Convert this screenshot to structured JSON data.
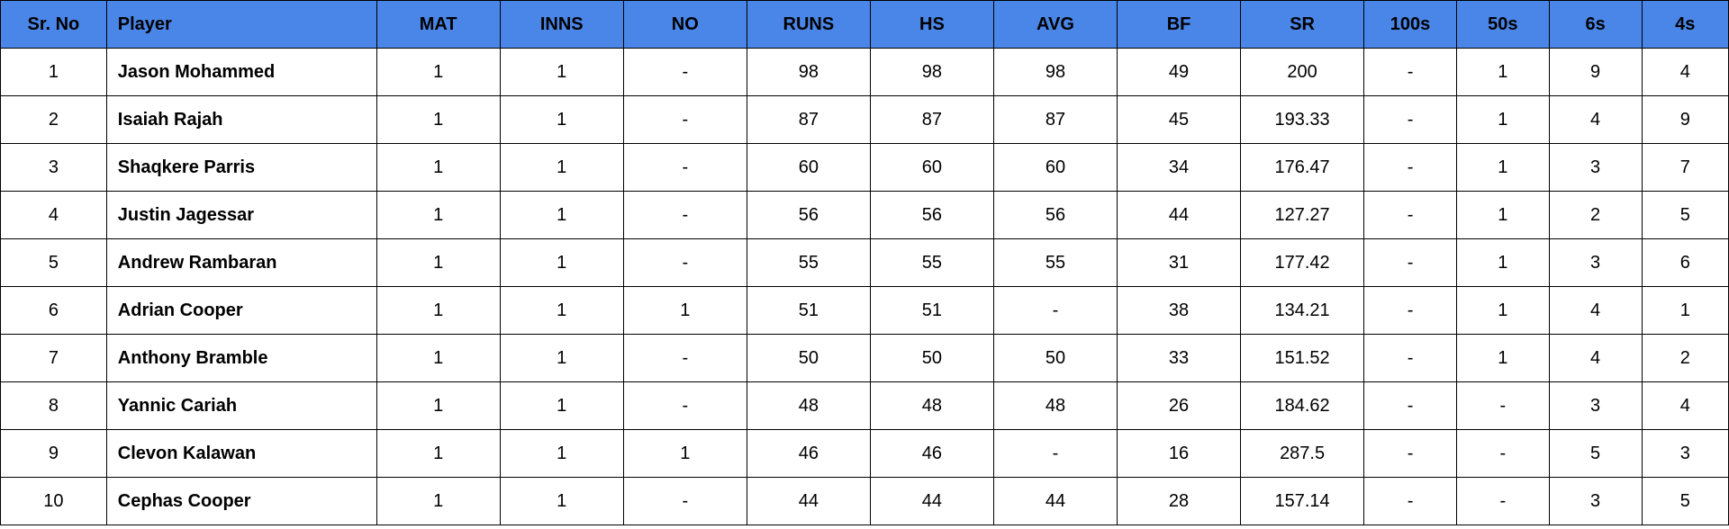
{
  "table": {
    "header_bg": "#4a86e8",
    "border_color": "#000000",
    "columns": [
      {
        "key": "sr",
        "label": "Sr. No",
        "class": "c-sr"
      },
      {
        "key": "player",
        "label": "Player",
        "class": "c-player player-col"
      },
      {
        "key": "mat",
        "label": "MAT",
        "class": "c-mat"
      },
      {
        "key": "inns",
        "label": "INNS",
        "class": "c-inns"
      },
      {
        "key": "no",
        "label": "NO",
        "class": "c-no"
      },
      {
        "key": "runs",
        "label": "RUNS",
        "class": "c-runs"
      },
      {
        "key": "hs",
        "label": "HS",
        "class": "c-hs"
      },
      {
        "key": "avg",
        "label": "AVG",
        "class": "c-avg"
      },
      {
        "key": "bf",
        "label": "BF",
        "class": "c-bf"
      },
      {
        "key": "srate",
        "label": "SR",
        "class": "c-sr2"
      },
      {
        "key": "h100",
        "label": "100s",
        "class": "c-100s"
      },
      {
        "key": "h50",
        "label": "50s",
        "class": "c-50s"
      },
      {
        "key": "s6",
        "label": "6s",
        "class": "c-6s"
      },
      {
        "key": "s4",
        "label": "4s",
        "class": "c-4s"
      }
    ],
    "rows": [
      {
        "sr": "1",
        "player": "Jason Mohammed",
        "mat": "1",
        "inns": "1",
        "no": "-",
        "runs": "98",
        "hs": "98",
        "avg": "98",
        "bf": "49",
        "srate": "200",
        "h100": "-",
        "h50": "1",
        "s6": "9",
        "s4": "4"
      },
      {
        "sr": "2",
        "player": "Isaiah Rajah",
        "mat": "1",
        "inns": "1",
        "no": "-",
        "runs": "87",
        "hs": "87",
        "avg": "87",
        "bf": "45",
        "srate": "193.33",
        "h100": "-",
        "h50": "1",
        "s6": "4",
        "s4": "9"
      },
      {
        "sr": "3",
        "player": "Shaqkere Parris",
        "mat": "1",
        "inns": "1",
        "no": "-",
        "runs": "60",
        "hs": "60",
        "avg": "60",
        "bf": "34",
        "srate": "176.47",
        "h100": "-",
        "h50": "1",
        "s6": "3",
        "s4": "7"
      },
      {
        "sr": "4",
        "player": "Justin Jagessar",
        "mat": "1",
        "inns": "1",
        "no": "-",
        "runs": "56",
        "hs": "56",
        "avg": "56",
        "bf": "44",
        "srate": "127.27",
        "h100": "-",
        "h50": "1",
        "s6": "2",
        "s4": "5"
      },
      {
        "sr": "5",
        "player": "Andrew Rambaran",
        "mat": "1",
        "inns": "1",
        "no": "-",
        "runs": "55",
        "hs": "55",
        "avg": "55",
        "bf": "31",
        "srate": "177.42",
        "h100": "-",
        "h50": "1",
        "s6": "3",
        "s4": "6"
      },
      {
        "sr": "6",
        "player": "Adrian Cooper",
        "mat": "1",
        "inns": "1",
        "no": "1",
        "runs": "51",
        "hs": "51",
        "avg": "-",
        "bf": "38",
        "srate": "134.21",
        "h100": "-",
        "h50": "1",
        "s6": "4",
        "s4": "1"
      },
      {
        "sr": "7",
        "player": "Anthony Bramble",
        "mat": "1",
        "inns": "1",
        "no": "-",
        "runs": "50",
        "hs": "50",
        "avg": "50",
        "bf": "33",
        "srate": "151.52",
        "h100": "-",
        "h50": "1",
        "s6": "4",
        "s4": "2"
      },
      {
        "sr": "8",
        "player": "Yannic Cariah",
        "mat": "1",
        "inns": "1",
        "no": "-",
        "runs": "48",
        "hs": "48",
        "avg": "48",
        "bf": "26",
        "srate": "184.62",
        "h100": "-",
        "h50": "-",
        "s6": "3",
        "s4": "4"
      },
      {
        "sr": "9",
        "player": "Clevon Kalawan",
        "mat": "1",
        "inns": "1",
        "no": "1",
        "runs": "46",
        "hs": "46",
        "avg": "-",
        "bf": "16",
        "srate": "287.5",
        "h100": "-",
        "h50": "-",
        "s6": "5",
        "s4": "3"
      },
      {
        "sr": "10",
        "player": "Cephas Cooper",
        "mat": "1",
        "inns": "1",
        "no": "-",
        "runs": "44",
        "hs": "44",
        "avg": "44",
        "bf": "28",
        "srate": "157.14",
        "h100": "-",
        "h50": "-",
        "s6": "3",
        "s4": "5"
      }
    ]
  }
}
